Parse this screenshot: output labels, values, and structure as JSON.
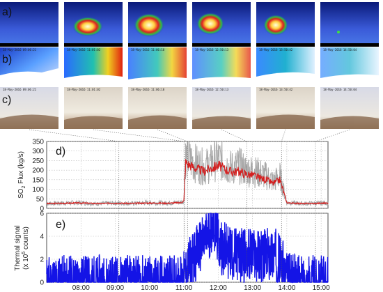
{
  "panels": {
    "a": "a)",
    "b": "b)",
    "c": "c)",
    "d": "d)",
    "e": "e)"
  },
  "image_timestamps": [
    "18-May-2016 09:06:21",
    "18-May-2016 11:01:02",
    "18-May-2016 11:06:18",
    "18-May-2016 12:50:13",
    "18-May-2016 13:50:42",
    "18-May-2016 14:50:04"
  ],
  "colors": {
    "so2_raw": "#a8a8a8",
    "so2_smooth": "#d42020",
    "thermal": "#1414e6",
    "guides": "#555555"
  },
  "chart_data": [
    {
      "type": "line",
      "ylabel_main": "SO",
      "ylabel_sub": "2",
      "ylabel_rest": " Flux (kg/s)",
      "ylim": [
        0,
        350
      ],
      "yticks": [
        "350",
        "300",
        "250",
        "200",
        "150",
        "100",
        "50",
        "0"
      ],
      "xlim_hours": [
        7.0,
        15.2
      ],
      "grid": true,
      "series": [
        {
          "style": "raw",
          "x": [
            7.0,
            7.5,
            8.0,
            8.5,
            9.0,
            9.5,
            10.0,
            10.5,
            10.9,
            11.0,
            11.05,
            11.2,
            11.4,
            11.6,
            11.8,
            12.0,
            12.2,
            12.4,
            12.6,
            12.8,
            13.0,
            13.2,
            13.4,
            13.6,
            13.8,
            13.9,
            14.0,
            14.2,
            14.5,
            15.0,
            15.2
          ],
          "y": [
            25,
            28,
            30,
            24,
            28,
            26,
            30,
            28,
            32,
            40,
            270,
            250,
            230,
            215,
            235,
            260,
            230,
            210,
            225,
            200,
            195,
            185,
            170,
            140,
            170,
            100,
            30,
            28,
            25,
            28,
            30
          ]
        },
        {
          "style": "smooth",
          "x": [
            7.0,
            7.5,
            8.0,
            8.5,
            9.0,
            9.5,
            10.0,
            10.5,
            10.9,
            11.0,
            11.05,
            11.2,
            11.4,
            11.6,
            11.8,
            12.0,
            12.2,
            12.4,
            12.6,
            12.8,
            13.0,
            13.2,
            13.4,
            13.6,
            13.8,
            13.9,
            14.0,
            14.2,
            14.5,
            15.0,
            15.2
          ],
          "y": [
            25,
            27,
            28,
            25,
            27,
            26,
            28,
            27,
            30,
            38,
            240,
            225,
            205,
            195,
            210,
            225,
            205,
            190,
            195,
            180,
            175,
            160,
            150,
            130,
            150,
            90,
            30,
            27,
            25,
            27,
            28
          ]
        }
      ]
    },
    {
      "type": "line",
      "ylabel_line1": "Thermal signal",
      "ylabel_line2": "(x 10",
      "ylabel_sup": "5",
      "ylabel_line2_end": " counts)",
      "ylim": [
        0,
        6
      ],
      "yticks": [
        "6",
        "4",
        "2",
        "0"
      ],
      "xticks": [
        "08:00",
        "09:00",
        "10:00",
        "11:00",
        "12:00",
        "13:00",
        "14:00",
        "15:00"
      ],
      "xlim_hours": [
        7.0,
        15.2
      ],
      "grid": true,
      "series": [
        {
          "style": "thermal",
          "x": [
            7.0,
            10.9,
            11.0,
            11.1,
            11.2,
            11.3,
            11.4,
            11.5,
            11.6,
            11.7,
            11.8,
            11.85,
            11.9,
            12.0,
            12.1,
            12.2,
            12.4,
            12.6,
            12.8,
            13.0,
            13.2,
            13.4,
            13.6,
            13.7,
            13.8,
            13.9,
            14.0,
            14.2,
            14.5,
            15.0,
            15.2
          ],
          "y": [
            0,
            0,
            0.3,
            1.0,
            1.8,
            2.2,
            2.8,
            3.2,
            3.5,
            4.2,
            4.6,
            5.8,
            4.8,
            3.6,
            3.0,
            2.8,
            2.5,
            2.4,
            2.3,
            2.4,
            2.2,
            2.3,
            2.5,
            2.3,
            1.8,
            1.2,
            0.3,
            0.05,
            0,
            0,
            0
          ]
        }
      ]
    }
  ]
}
